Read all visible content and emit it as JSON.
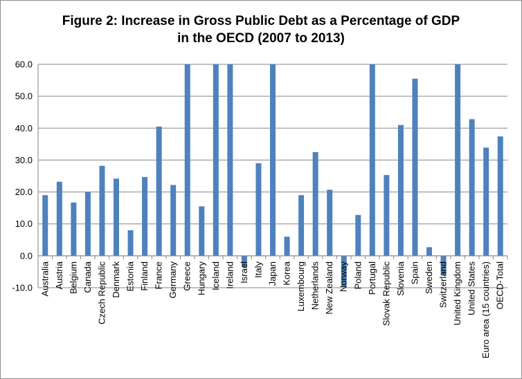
{
  "chart_data": {
    "type": "bar",
    "title_line1": "Figure 2: Increase in Gross Public Debt as a Percentage of GDP",
    "title_line2": "in the OECD (2007 to 2013)",
    "xlabel": "",
    "ylabel": "",
    "ylim": [
      -10,
      60
    ],
    "yticks": [
      "-10.0",
      "0.0",
      "10.0",
      "20.0",
      "30.0",
      "40.0",
      "50.0",
      "60.0"
    ],
    "grid": true,
    "legend": "none",
    "bar_color": "#4f81bd",
    "categories": [
      "Australia",
      "Austria",
      "Belgium",
      "Canada",
      "Czech Republic",
      "Denmark",
      "Estonia",
      "Finland",
      "France",
      "Germany",
      "Greece",
      "Hungary",
      "Iceland",
      "Ireland",
      "Israel",
      "Italy",
      "Japan",
      "Korea",
      "Luxembourg",
      "Netherlands",
      "New Zealand",
      "Norway",
      "Poland",
      "Portugal",
      "Slovak Republic",
      "Slovenia",
      "Spain",
      "Sweden",
      "Switzerland",
      "United Kingdom",
      "United States",
      "Euro area (15 countries)",
      "OECD-Total"
    ],
    "values": [
      19.0,
      23.2,
      16.7,
      20.0,
      28.2,
      24.2,
      8.0,
      24.7,
      40.5,
      22.2,
      60.0,
      15.5,
      60.0,
      60.0,
      -3.5,
      29.0,
      60.0,
      6.0,
      19.0,
      32.5,
      20.7,
      -9.5,
      12.8,
      60.0,
      25.3,
      41.0,
      55.5,
      2.7,
      -6.0,
      60.0,
      42.8,
      33.9,
      37.4
    ]
  }
}
